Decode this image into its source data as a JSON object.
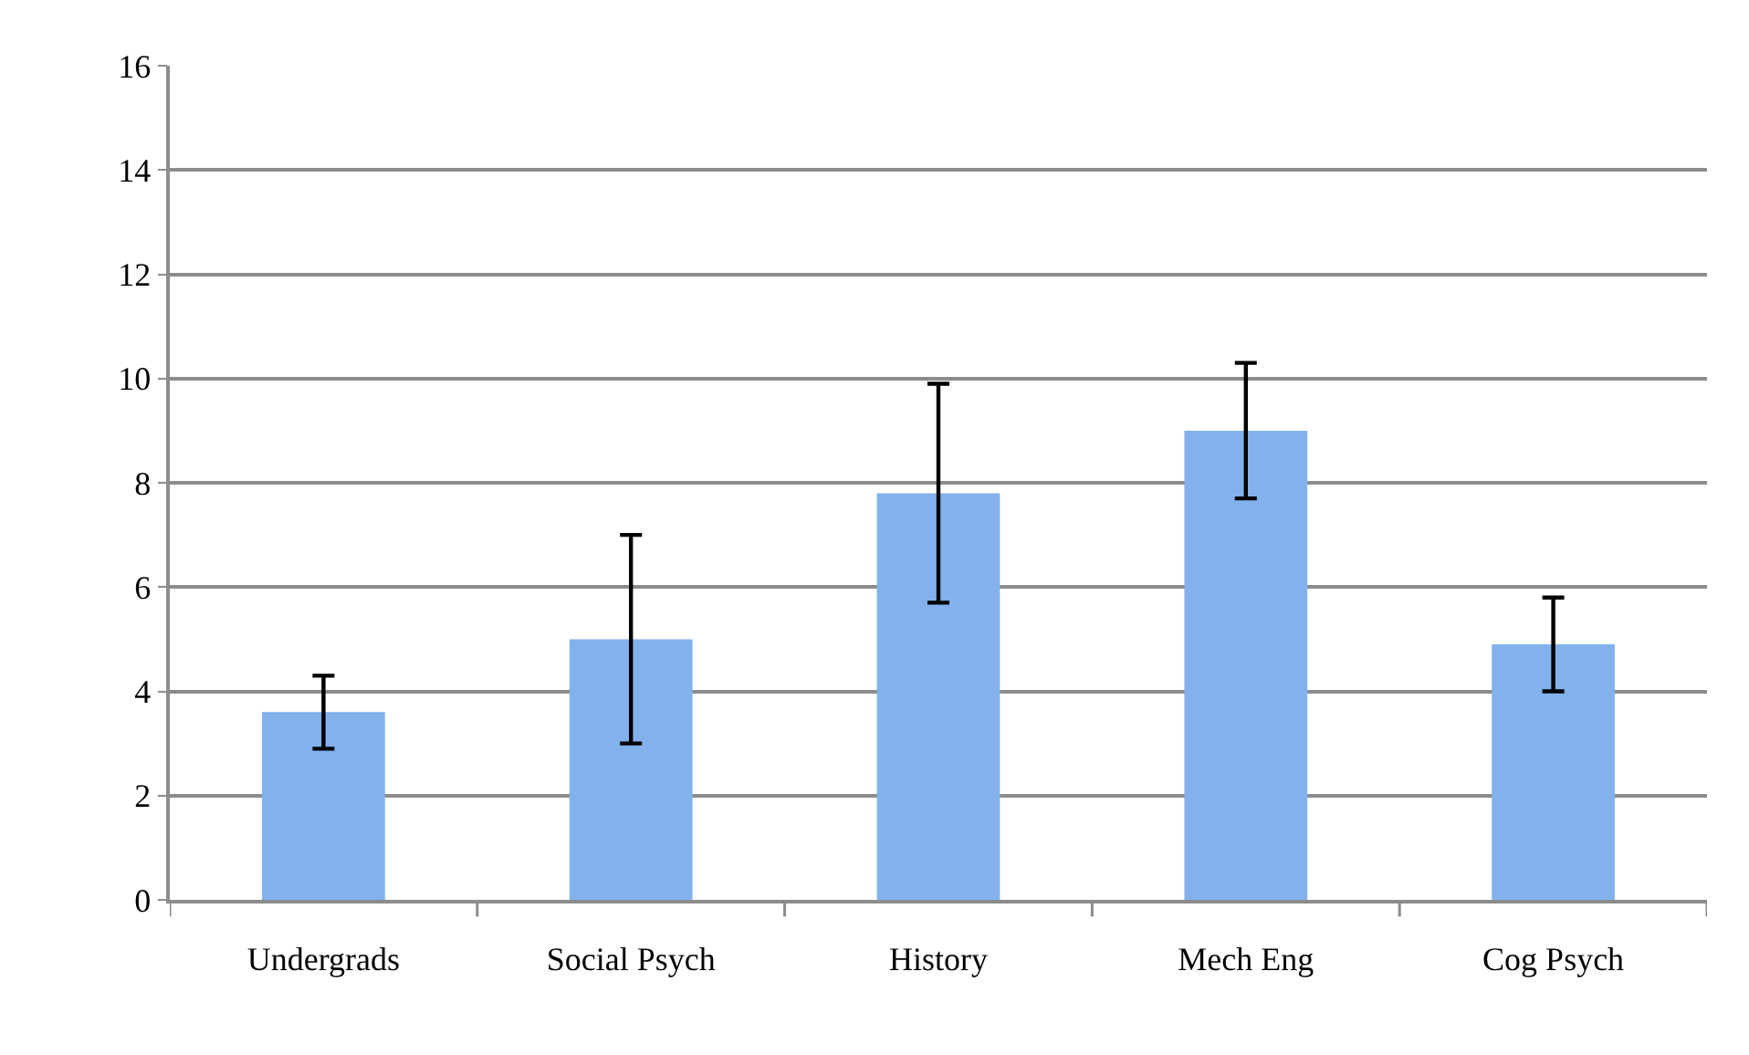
{
  "chart_data": {
    "type": "bar",
    "categories": [
      "Undergrads",
      "Social Psych",
      "History",
      "Mech Eng",
      "Cog Psych"
    ],
    "values": [
      3.6,
      5.0,
      7.8,
      9.0,
      4.9
    ],
    "errors": [
      0.7,
      2.0,
      2.1,
      1.3,
      0.9
    ],
    "color": "#82b1ec",
    "ylim": [
      0,
      16
    ],
    "yticks": [
      0,
      2,
      4,
      6,
      8,
      10,
      12,
      14,
      16
    ],
    "grid": "y",
    "legend": false
  }
}
